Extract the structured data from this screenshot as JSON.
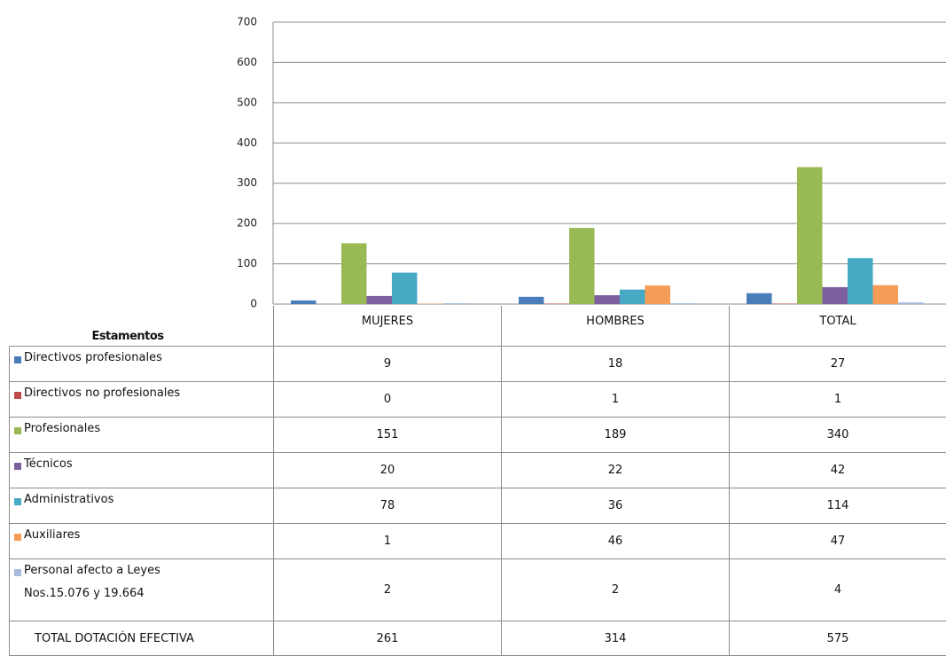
{
  "chart_data": {
    "type": "bar",
    "table_header": "Estamentos",
    "categories": [
      "MUJERES",
      "HOMBRES",
      "TOTAL"
    ],
    "series": [
      {
        "name": "Directivos profesionales",
        "color": "#4a7ebb",
        "values": [
          9,
          18,
          27
        ]
      },
      {
        "name": "Directivos no profesionales",
        "color": "#be4b48",
        "values": [
          0,
          1,
          1
        ]
      },
      {
        "name": "Profesionales",
        "color": "#98b954",
        "values": [
          151,
          189,
          340
        ]
      },
      {
        "name": "Técnicos",
        "color": "#7d60a0",
        "values": [
          20,
          22,
          42
        ]
      },
      {
        "name": "Administrativos",
        "color": "#46aac5",
        "values": [
          78,
          36,
          114
        ]
      },
      {
        "name": "Auxiliares",
        "color": "#f59d56",
        "values": [
          1,
          46,
          47
        ]
      },
      {
        "name": "Personal afecto a Leyes Nos.15.076 y 19.664",
        "color": "#a5b9dd",
        "values": [
          2,
          2,
          4
        ]
      }
    ],
    "total_row": {
      "name": "TOTAL DOTACIÓN EFECTIVA",
      "values": [
        261,
        314,
        575
      ]
    },
    "ylim": [
      0,
      700
    ],
    "yticks": [
      0,
      100,
      200,
      300,
      400,
      500,
      600,
      700
    ],
    "grid": true
  }
}
